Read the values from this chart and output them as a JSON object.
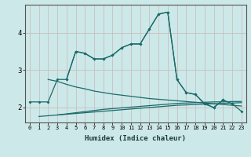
{
  "xlabel": "Humidex (Indice chaleur)",
  "background_color": "#cde8e8",
  "grid_color": "#c8b8b8",
  "line_color": "#1a6b6b",
  "x_values": [
    0,
    1,
    2,
    3,
    4,
    5,
    6,
    7,
    8,
    9,
    10,
    11,
    12,
    13,
    14,
    15,
    16,
    17,
    18,
    19,
    20,
    21,
    22,
    23
  ],
  "line1_x": [
    0,
    1,
    2,
    3,
    4,
    5,
    6,
    7,
    8,
    9,
    10,
    11,
    12,
    13,
    14,
    15,
    16,
    17,
    18,
    19,
    20,
    21,
    22
  ],
  "line1_y": [
    2.15,
    2.15,
    2.15,
    2.75,
    2.75,
    3.5,
    3.45,
    3.3,
    3.3,
    3.4,
    3.6,
    3.7,
    3.7,
    4.1,
    4.5,
    4.55,
    2.75,
    2.4,
    2.35,
    2.1,
    2.0,
    2.2,
    2.1
  ],
  "line2_x": [
    4,
    5,
    6,
    7,
    8,
    9,
    10,
    11,
    12,
    13,
    14,
    15,
    16,
    17,
    18,
    19,
    20,
    21,
    22,
    23
  ],
  "line2_y": [
    2.75,
    3.5,
    3.45,
    3.3,
    3.3,
    3.4,
    3.6,
    3.7,
    3.7,
    4.1,
    4.5,
    4.55,
    2.75,
    2.4,
    2.35,
    2.1,
    2.0,
    2.2,
    2.1,
    1.9
  ],
  "line3_x": [
    2,
    3,
    4,
    5,
    6,
    7,
    8,
    9,
    10,
    11,
    12,
    13,
    14,
    15,
    16,
    17,
    18,
    19,
    20,
    21,
    22,
    23
  ],
  "line3_y": [
    2.75,
    2.7,
    2.62,
    2.55,
    2.5,
    2.44,
    2.4,
    2.36,
    2.33,
    2.3,
    2.27,
    2.24,
    2.22,
    2.2,
    2.18,
    2.16,
    2.14,
    2.12,
    2.1,
    2.08,
    2.06,
    2.04
  ],
  "line4_x": [
    1,
    2,
    3,
    4,
    5,
    6,
    7,
    8,
    9,
    10,
    11,
    12,
    13,
    14,
    15,
    16,
    17,
    18,
    19,
    20,
    21,
    22,
    23
  ],
  "line4_y": [
    1.76,
    1.78,
    1.8,
    1.82,
    1.84,
    1.86,
    1.88,
    1.9,
    1.92,
    1.94,
    1.96,
    1.98,
    2.0,
    2.02,
    2.04,
    2.06,
    2.07,
    2.08,
    2.09,
    2.1,
    2.11,
    2.12,
    2.13
  ],
  "line5_x": [
    3,
    4,
    5,
    6,
    7,
    8,
    9,
    10,
    11,
    12,
    13,
    14,
    15,
    16,
    17,
    18,
    19,
    20,
    21,
    22,
    23
  ],
  "line5_y": [
    1.8,
    1.83,
    1.86,
    1.89,
    1.92,
    1.95,
    1.97,
    1.99,
    2.01,
    2.03,
    2.05,
    2.07,
    2.09,
    2.11,
    2.12,
    2.13,
    2.14,
    2.15,
    2.15,
    2.16,
    2.16
  ],
  "ylim": [
    1.6,
    4.75
  ],
  "yticks": [
    2,
    3,
    4
  ],
  "xlim": [
    -0.5,
    23.5
  ]
}
